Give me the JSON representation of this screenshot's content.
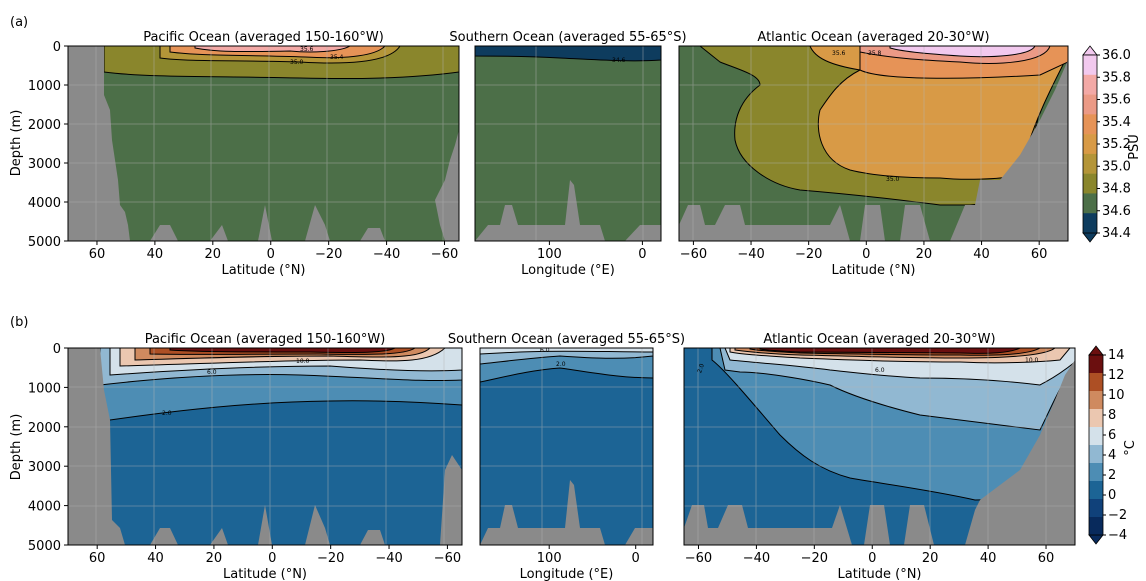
{
  "figure": {
    "panels": [
      {
        "label": "(a)",
        "depth_label": "Depth (m)",
        "colorbar_label": "PSU",
        "colorbar_ticks": [
          "36.0",
          "35.8",
          "35.6",
          "35.4",
          "35.2",
          "35.0",
          "34.8",
          "34.6",
          "34.4"
        ],
        "colorbar_colors": [
          "#f2c9ee",
          "#f3a9a6",
          "#eb9a86",
          "#e69357",
          "#d89a46",
          "#b49538",
          "#8a862c",
          "#4c6f48",
          "#0e3c5e"
        ]
      },
      {
        "label": "(b)",
        "depth_label": "Depth (m)",
        "colorbar_label": "°C",
        "colorbar_ticks": [
          "14",
          "12",
          "10",
          "8",
          "6",
          "4",
          "2",
          "0",
          "−2",
          "−4"
        ],
        "colorbar_colors": [
          "#6b0f0f",
          "#ad4f24",
          "#cf8a5f",
          "#ebc7b0",
          "#d4e1ea",
          "#91b8d2",
          "#4d8db4",
          "#1c6495",
          "#10417a",
          "#082a5c"
        ]
      }
    ]
  },
  "chart_data": [
    {
      "type": "heatmap",
      "title": "Pacific Ocean (averaged 150-160°W)",
      "variable": "salinity",
      "xlabel": "Latitude ($^\\circ$N)",
      "ylabel": "Depth (m)",
      "xticks": [
        "60",
        "40",
        "20",
        "0",
        "−20",
        "−40",
        "−60"
      ],
      "xlim": [
        70,
        -65
      ],
      "yticks": [
        "0",
        "1000",
        "2000",
        "3000",
        "4000",
        "5000"
      ],
      "ylim": [
        5000,
        0
      ],
      "contour_labels": [
        "35.0",
        "35.2",
        "35.4",
        "35.6"
      ]
    },
    {
      "type": "heatmap",
      "title": "Southern Ocean (averaged 55-65°S)",
      "variable": "salinity",
      "xlabel": "Longitude ($^\\circ$E)",
      "ylabel": "",
      "xticks": [
        "100",
        "0"
      ],
      "xlim": [
        180,
        -20
      ],
      "ylim": [
        5000,
        0
      ],
      "contour_labels": [
        "34.6"
      ]
    },
    {
      "type": "heatmap",
      "title": "Atlantic Ocean (averaged 20-30°W)",
      "variable": "salinity",
      "xlabel": "Latitude ($^\\circ$N)",
      "ylabel": "",
      "xticks": [
        "−60",
        "−40",
        "−20",
        "0",
        "20",
        "40",
        "60"
      ],
      "xlim": [
        -65,
        70
      ],
      "ylim": [
        5000,
        0
      ],
      "contour_labels": [
        "35.0",
        "35.6",
        "35.8"
      ]
    },
    {
      "type": "heatmap",
      "title": "Pacific Ocean (averaged 150-160°W)",
      "variable": "temperature",
      "xlabel": "Latitude ($^\\circ$N)",
      "ylabel": "Depth (m)",
      "xticks": [
        "60",
        "40",
        "20",
        "0",
        "−20",
        "−40",
        "−60"
      ],
      "xlim": [
        70,
        -65
      ],
      "yticks": [
        "0",
        "1000",
        "2000",
        "3000",
        "4000",
        "5000"
      ],
      "ylim": [
        5000,
        0
      ],
      "contour_labels": [
        "2.0",
        "6.0",
        "10.0"
      ]
    },
    {
      "type": "heatmap",
      "title": "Southern Ocean (averaged 55-65°S)",
      "variable": "temperature",
      "xlabel": "Longitude ($^\\circ$E)",
      "ylabel": "",
      "xticks": [
        "100",
        "0"
      ],
      "xlim": [
        180,
        -20
      ],
      "ylim": [
        5000,
        0
      ],
      "contour_labels": [
        "2.0",
        "6.0"
      ]
    },
    {
      "type": "heatmap",
      "title": "Atlantic Ocean (averaged 20-30°W)",
      "variable": "temperature",
      "xlabel": "Latitude ($^\\circ$N)",
      "ylabel": "",
      "xticks": [
        "−60",
        "−40",
        "−20",
        "0",
        "20",
        "40",
        "60"
      ],
      "xlim": [
        -65,
        70
      ],
      "ylim": [
        5000,
        0
      ],
      "contour_labels": [
        "2.0",
        "6.0",
        "10.0"
      ]
    }
  ]
}
